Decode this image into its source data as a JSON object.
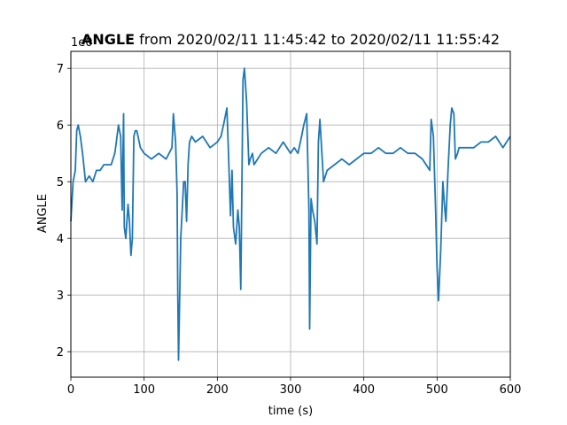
{
  "chart_data": {
    "type": "line",
    "title_bold": "ANGLE",
    "title_rest": " from 2020/02/11 11:45:42 to 2020/02/11 11:55:42",
    "xlabel": "time (s)",
    "ylabel": "ANGLE",
    "offset_label": "1e0",
    "xlim": [
      0,
      600
    ],
    "ylim": [
      1.55,
      7.3
    ],
    "xticks": [
      0,
      100,
      200,
      300,
      400,
      500,
      600
    ],
    "yticks": [
      2,
      3,
      4,
      5,
      6,
      7
    ],
    "grid": true,
    "line_color": "#1f77b4",
    "series": [
      {
        "x": [
          0,
          3,
          6,
          8,
          10,
          13,
          16,
          20,
          25,
          30,
          35,
          40,
          45,
          50,
          55,
          60,
          62,
          65,
          68,
          70,
          72,
          73,
          75,
          78,
          80,
          82,
          84,
          86,
          88,
          90,
          95,
          100,
          110,
          120,
          130,
          138,
          140,
          143,
          145,
          146,
          147,
          148,
          150,
          152,
          154,
          156,
          158,
          160,
          162,
          165,
          170,
          180,
          190,
          200,
          205,
          210,
          213,
          215,
          218,
          220,
          222,
          225,
          228,
          230,
          232,
          235,
          237,
          240,
          243,
          245,
          248,
          250,
          255,
          260,
          270,
          280,
          290,
          300,
          305,
          310,
          315,
          318,
          322,
          325,
          326,
          328,
          330,
          333,
          336,
          338,
          340,
          345,
          350,
          360,
          370,
          380,
          390,
          400,
          410,
          420,
          430,
          440,
          450,
          460,
          470,
          480,
          490,
          492,
          495,
          498,
          500,
          502,
          505,
          508,
          510,
          512,
          515,
          518,
          520,
          523,
          525,
          528,
          530,
          540,
          550,
          560,
          570,
          580,
          590,
          600
        ],
        "y": [
          4.3,
          5.0,
          5.2,
          5.9,
          6.0,
          5.8,
          5.5,
          5.0,
          5.1,
          5.0,
          5.2,
          5.2,
          5.3,
          5.3,
          5.3,
          5.5,
          5.7,
          6.0,
          5.8,
          4.5,
          6.2,
          4.2,
          4.0,
          4.6,
          4.3,
          3.7,
          4.0,
          5.8,
          5.9,
          5.9,
          5.6,
          5.5,
          5.4,
          5.5,
          5.4,
          5.6,
          6.2,
          5.7,
          4.8,
          3.0,
          1.85,
          2.5,
          4.0,
          4.5,
          5.0,
          5.0,
          4.3,
          5.3,
          5.7,
          5.8,
          5.7,
          5.8,
          5.6,
          5.7,
          5.8,
          6.1,
          6.3,
          5.6,
          4.4,
          5.2,
          4.2,
          3.9,
          4.5,
          4.2,
          3.1,
          6.8,
          7.0,
          6.4,
          5.3,
          5.4,
          5.5,
          5.3,
          5.4,
          5.5,
          5.6,
          5.5,
          5.7,
          5.5,
          5.6,
          5.5,
          5.8,
          6.0,
          6.2,
          4.5,
          2.4,
          4.7,
          4.5,
          4.3,
          3.9,
          5.7,
          6.1,
          5.0,
          5.2,
          5.3,
          5.4,
          5.3,
          5.4,
          5.5,
          5.5,
          5.6,
          5.5,
          5.5,
          5.6,
          5.5,
          5.5,
          5.4,
          5.2,
          6.1,
          5.8,
          4.5,
          3.5,
          2.9,
          3.8,
          5.0,
          4.6,
          4.3,
          5.2,
          6.0,
          6.3,
          6.2,
          5.4,
          5.5,
          5.6,
          5.6,
          5.6,
          5.7,
          5.7,
          5.8,
          5.6,
          5.8
        ]
      }
    ]
  }
}
